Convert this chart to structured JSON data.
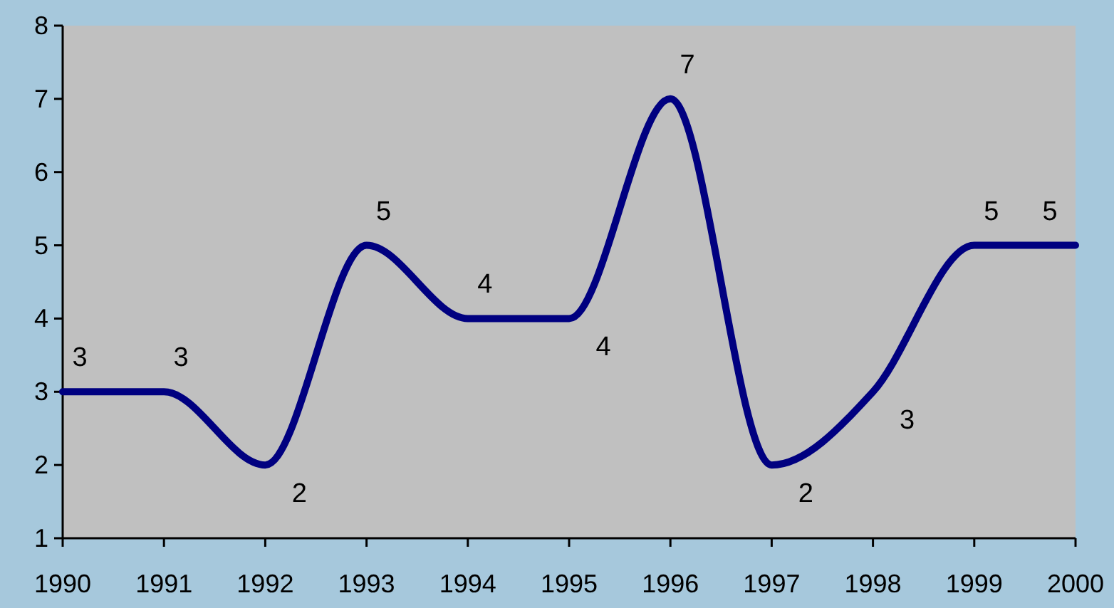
{
  "chart_data": {
    "type": "line",
    "x": [
      1990,
      1991,
      1992,
      1993,
      1994,
      1995,
      1996,
      1997,
      1998,
      1999,
      2000
    ],
    "series": [
      {
        "color": "#000080",
        "values": [
          3,
          3,
          2,
          5,
          4,
          4,
          7,
          2,
          3,
          5,
          5
        ]
      }
    ],
    "xlim": [
      1990,
      2000
    ],
    "xticks": [
      1990,
      1991,
      1992,
      1993,
      1994,
      1995,
      1996,
      1997,
      1998,
      1999,
      2000
    ],
    "ylim": [
      1,
      8
    ],
    "yticks": [
      1,
      2,
      3,
      4,
      5,
      6,
      7,
      8
    ],
    "grid": false,
    "marker": "none",
    "line_style": "solid",
    "data_labels": true
  }
}
